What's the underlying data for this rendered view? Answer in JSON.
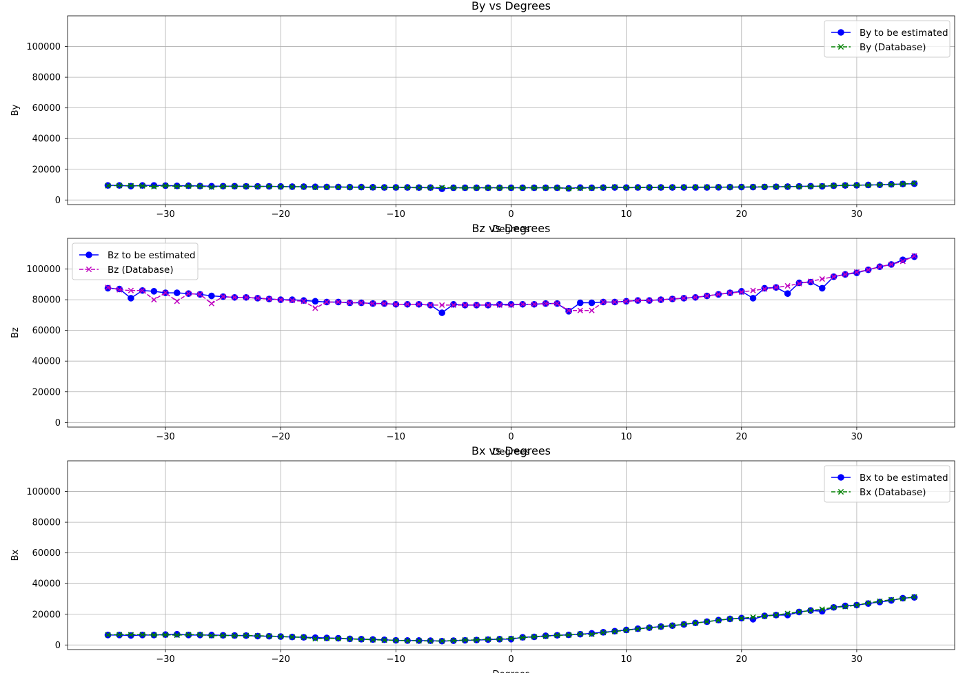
{
  "chart_data": [
    {
      "type": "line",
      "title": "By vs Degrees",
      "xlabel": "Degrees",
      "ylabel": "By",
      "xlim": [
        -38.5,
        38.5
      ],
      "ylim": [
        -3000,
        120000
      ],
      "xticks": [
        -30,
        -20,
        -10,
        0,
        10,
        20,
        30
      ],
      "yticks": [
        0,
        20000,
        40000,
        60000,
        80000,
        100000
      ],
      "grid": true,
      "legend_position": "upper right",
      "x": [
        -35,
        -34,
        -33,
        -32,
        -31,
        -30,
        -29,
        -28,
        -27,
        -26,
        -25,
        -24,
        -23,
        -22,
        -21,
        -20,
        -19,
        -18,
        -17,
        -16,
        -15,
        -14,
        -13,
        -12,
        -11,
        -10,
        -9,
        -8,
        -7,
        -6,
        -5,
        -4,
        -3,
        -2,
        -1,
        0,
        1,
        2,
        3,
        4,
        5,
        6,
        7,
        8,
        9,
        10,
        11,
        12,
        13,
        14,
        15,
        16,
        17,
        18,
        19,
        20,
        21,
        22,
        23,
        24,
        25,
        26,
        27,
        28,
        29,
        30,
        31,
        32,
        33,
        34,
        35
      ],
      "series": [
        {
          "name": "By to be estimated",
          "color": "#0000ff",
          "marker": "circle",
          "dash": "solid",
          "values": [
            9500,
            9500,
            9000,
            9500,
            9500,
            9400,
            9200,
            9300,
            9100,
            9000,
            9000,
            9000,
            8900,
            8900,
            8900,
            8800,
            8700,
            8700,
            8600,
            8500,
            8500,
            8400,
            8400,
            8300,
            8200,
            8200,
            8200,
            8100,
            8100,
            7300,
            8000,
            8000,
            8000,
            8000,
            8000,
            8000,
            8000,
            8000,
            8000,
            8000,
            7600,
            8100,
            8000,
            8100,
            8200,
            8100,
            8200,
            8200,
            8200,
            8200,
            8200,
            8200,
            8200,
            8300,
            8400,
            8400,
            8400,
            8500,
            8600,
            8700,
            8900,
            9000,
            8900,
            9300,
            9500,
            9600,
            9800,
            9900,
            10200,
            10400,
            10600
          ]
        },
        {
          "name": "By (Database)",
          "color": "#008000",
          "marker": "x",
          "dash": "dashed",
          "values": [
            9300,
            9400,
            9300,
            9200,
            8700,
            9300,
            8900,
            9100,
            9000,
            8400,
            8900,
            8900,
            8900,
            8800,
            8900,
            8700,
            8600,
            8600,
            8300,
            8400,
            8400,
            8300,
            8300,
            8100,
            8100,
            8100,
            8100,
            8000,
            8000,
            8100,
            7900,
            7900,
            7900,
            7900,
            7900,
            7900,
            7900,
            7900,
            7900,
            7900,
            7500,
            7700,
            7800,
            8000,
            8400,
            8000,
            8100,
            8100,
            8100,
            8200,
            8300,
            8400,
            8400,
            8400,
            8400,
            8500,
            8500,
            8600,
            8600,
            8700,
            8800,
            8900,
            9100,
            9300,
            9500,
            9600,
            9700,
            9900,
            10100,
            10400,
            10800
          ]
        }
      ]
    },
    {
      "type": "line",
      "title": "Bz vs Degrees",
      "xlabel": "Degrees",
      "ylabel": "Bz",
      "xlim": [
        -38.5,
        38.5
      ],
      "ylim": [
        -3000,
        120000
      ],
      "xticks": [
        -30,
        -20,
        -10,
        0,
        10,
        20,
        30
      ],
      "yticks": [
        0,
        20000,
        40000,
        60000,
        80000,
        100000
      ],
      "grid": true,
      "legend_position": "upper left",
      "x": [
        -35,
        -34,
        -33,
        -32,
        -31,
        -30,
        -29,
        -28,
        -27,
        -26,
        -25,
        -24,
        -23,
        -22,
        -21,
        -20,
        -19,
        -18,
        -17,
        -16,
        -15,
        -14,
        -13,
        -12,
        -11,
        -10,
        -9,
        -8,
        -7,
        -6,
        -5,
        -4,
        -3,
        -2,
        -1,
        0,
        1,
        2,
        3,
        4,
        5,
        6,
        7,
        8,
        9,
        10,
        11,
        12,
        13,
        14,
        15,
        16,
        17,
        18,
        19,
        20,
        21,
        22,
        23,
        24,
        25,
        26,
        27,
        28,
        29,
        30,
        31,
        32,
        33,
        34,
        35
      ],
      "series": [
        {
          "name": "Bz to be estimated",
          "color": "#0000ff",
          "marker": "circle",
          "dash": "solid",
          "values": [
            87500,
            87000,
            81000,
            86000,
            85500,
            84500,
            84500,
            84000,
            83500,
            82500,
            82000,
            81500,
            81500,
            81000,
            80500,
            80000,
            80000,
            79500,
            79000,
            78500,
            78500,
            78000,
            78000,
            77500,
            77500,
            77000,
            77000,
            77000,
            76500,
            71500,
            77000,
            76500,
            76500,
            76500,
            77000,
            77000,
            77000,
            77000,
            77500,
            77500,
            72500,
            78000,
            78000,
            78500,
            78500,
            79000,
            79500,
            79500,
            80000,
            80500,
            81000,
            81500,
            82500,
            83500,
            84500,
            85500,
            81000,
            87500,
            88000,
            84000,
            91000,
            91500,
            87500,
            95000,
            96500,
            97500,
            99500,
            101500,
            103000,
            106000,
            108000
          ]
        },
        {
          "name": "Bz (Database)",
          "color": "#bf00bf",
          "marker": "x",
          "dash": "dashed",
          "values": [
            88000,
            86500,
            86000,
            86000,
            80000,
            84500,
            79000,
            84000,
            83500,
            77500,
            82000,
            81500,
            81500,
            81000,
            80500,
            80000,
            79500,
            79000,
            74500,
            78500,
            78500,
            78000,
            78000,
            77500,
            77500,
            77000,
            77000,
            77000,
            76500,
            76500,
            76500,
            76500,
            76500,
            76500,
            76500,
            76500,
            77000,
            77000,
            77500,
            77500,
            73000,
            73000,
            73000,
            78500,
            78500,
            79000,
            79500,
            79500,
            80000,
            80500,
            81000,
            81500,
            82500,
            83500,
            84500,
            85000,
            86000,
            87000,
            88000,
            89000,
            90500,
            92000,
            93500,
            95000,
            96500,
            98000,
            99500,
            101500,
            103000,
            105000,
            108500
          ]
        }
      ]
    },
    {
      "type": "line",
      "title": "Bx vs Degrees",
      "xlabel": "Degrees",
      "ylabel": "Bx",
      "xlim": [
        -38.5,
        38.5
      ],
      "ylim": [
        -3000,
        120000
      ],
      "xticks": [
        -30,
        -20,
        -10,
        0,
        10,
        20,
        30
      ],
      "yticks": [
        0,
        20000,
        40000,
        60000,
        80000,
        100000
      ],
      "grid": true,
      "legend_position": "upper right",
      "x": [
        -35,
        -34,
        -33,
        -32,
        -31,
        -30,
        -29,
        -28,
        -27,
        -26,
        -25,
        -24,
        -23,
        -22,
        -21,
        -20,
        -19,
        -18,
        -17,
        -16,
        -15,
        -14,
        -13,
        -12,
        -11,
        -10,
        -9,
        -8,
        -7,
        -6,
        -5,
        -4,
        -3,
        -2,
        -1,
        0,
        1,
        2,
        3,
        4,
        5,
        6,
        7,
        8,
        9,
        10,
        11,
        12,
        13,
        14,
        15,
        16,
        17,
        18,
        19,
        20,
        21,
        22,
        23,
        24,
        25,
        26,
        27,
        28,
        29,
        30,
        31,
        32,
        33,
        34,
        35
      ],
      "series": [
        {
          "name": "Bx to be estimated",
          "color": "#0000ff",
          "marker": "circle",
          "dash": "solid",
          "values": [
            6500,
            6500,
            6200,
            6500,
            6500,
            6800,
            7000,
            6500,
            6500,
            6500,
            6300,
            6200,
            6100,
            5800,
            5700,
            5500,
            5200,
            5000,
            4800,
            4600,
            4400,
            4000,
            3800,
            3600,
            3400,
            3000,
            2900,
            2900,
            2800,
            2500,
            2800,
            3000,
            3200,
            3500,
            3800,
            3800,
            5000,
            5300,
            6000,
            6300,
            6600,
            7000,
            7600,
            8300,
            9000,
            9800,
            10600,
            11300,
            12000,
            12600,
            13400,
            14400,
            15200,
            16200,
            17000,
            17500,
            16800,
            19000,
            19500,
            19500,
            21500,
            22500,
            22000,
            24500,
            25500,
            26000,
            27000,
            28000,
            29000,
            30500,
            31000
          ]
        },
        {
          "name": "Bx (Database)",
          "color": "#008000",
          "marker": "x",
          "dash": "dashed",
          "values": [
            6600,
            6700,
            6700,
            6700,
            6500,
            6600,
            6400,
            6700,
            6700,
            6100,
            6200,
            6100,
            6200,
            6000,
            5800,
            5500,
            5200,
            5000,
            4100,
            4300,
            4200,
            3900,
            3700,
            3400,
            3200,
            3000,
            2800,
            2700,
            2600,
            2600,
            2900,
            3200,
            3300,
            3700,
            3800,
            4200,
            4800,
            5300,
            5700,
            6300,
            6500,
            7100,
            7000,
            8100,
            8800,
            9600,
            10400,
            11200,
            11900,
            12600,
            13500,
            14300,
            15200,
            16100,
            16900,
            17400,
            18100,
            18800,
            19500,
            20500,
            21500,
            22500,
            23300,
            24500,
            25000,
            26000,
            27300,
            28500,
            29500,
            30300,
            31300
          ]
        }
      ]
    }
  ]
}
